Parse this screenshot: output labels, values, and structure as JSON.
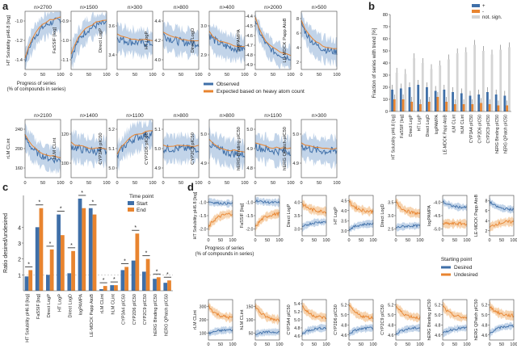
{
  "colors": {
    "blue": "#3f6fa8",
    "blue_light": "#a8c2e0",
    "orange": "#e8842f",
    "orange_light": "#f4c28f",
    "grey": "#d4d4d4",
    "axis": "#444444"
  },
  "panel_a": {
    "label": "a",
    "xlabel_lines": [
      "Progress of series",
      "(% of compounds in series)"
    ],
    "legend": [
      "Observed",
      "Expected based on heavy atom count"
    ],
    "plots": [
      {
        "n": "n>2700",
        "ylabel": "HT Solubility pH6.8 [log]",
        "yticks": [
          "-1.4",
          "-1.2",
          "-1.0"
        ],
        "start": 0.15,
        "end": 0.85,
        "noise": 0.12
      },
      {
        "n": "n>1500",
        "ylabel": "FaSSIF [log]",
        "yticks": [
          "-1.1",
          "-1.0",
          "-0.9"
        ],
        "start": 0.2,
        "end": 0.8,
        "noise": 0.12
      },
      {
        "n": "n>300",
        "ylabel": "Direct LogP",
        "yticks": [
          "3.4",
          "3.6"
        ],
        "start": 0.55,
        "end": 0.45,
        "noise": 0.14
      },
      {
        "n": "n>800",
        "ylabel": "HT LogP",
        "yticks": [
          "4.0",
          "4.2",
          "4.4"
        ],
        "start": 0.6,
        "end": 0.45,
        "noise": 0.14
      },
      {
        "n": "n>400",
        "ylabel": "Direct LogD",
        "yticks": [
          "2.9",
          "3.0"
        ],
        "start": 0.6,
        "end": 0.35,
        "noise": 0.14
      },
      {
        "n": "n>2000",
        "ylabel": "logPAMPA",
        "yticks": [
          "-4.9",
          "-4.8",
          "-4.7",
          "-4.6",
          "-4.5",
          "-4.4"
        ],
        "start": 0.85,
        "end": 0.2,
        "noise": 0.1
      },
      {
        "n": "n>500",
        "ylabel": "LE-MDCK Papp AtoB",
        "yticks": [
          "2",
          "4",
          "6",
          "8"
        ],
        "start": 0.8,
        "end": 0.3,
        "noise": 0.12
      },
      {
        "n": "n>2100",
        "ylabel": "rLM CLint",
        "yticks": [
          "160",
          "200",
          "240"
        ],
        "start": 0.7,
        "end": 0.3,
        "noise": 0.12
      },
      {
        "n": "n>1400",
        "ylabel": "hLM CLint",
        "yticks": [
          "100",
          "120"
        ],
        "start": 0.55,
        "end": 0.45,
        "noise": 0.14
      },
      {
        "n": "n>1100",
        "ylabel": "CYP3A4 pIC50",
        "yticks": [
          "5.0",
          "5.1",
          "5.2"
        ],
        "start": 0.35,
        "end": 0.75,
        "noise": 0.14
      },
      {
        "n": "n>800",
        "ylabel": "CYP2D6 pIC50",
        "yticks": [
          "4.9",
          "5.0",
          "5.1"
        ],
        "start": 0.5,
        "end": 0.5,
        "noise": 0.14
      },
      {
        "n": "n>800",
        "ylabel": "CYP2C9 pIC50",
        "yticks": [
          "4.9",
          "5.0"
        ],
        "start": 0.6,
        "end": 0.4,
        "noise": 0.14
      },
      {
        "n": "n>1100",
        "ylabel": "hERG Binding pIC50",
        "yticks": [
          "4.8",
          "4.9",
          "5.0"
        ],
        "start": 0.55,
        "end": 0.45,
        "noise": 0.14
      },
      {
        "n": "n>300",
        "ylabel": "hERG QPatch pIC50",
        "yticks": [
          "4.9",
          "5.0"
        ],
        "start": 0.55,
        "end": 0.45,
        "noise": 0.14
      }
    ],
    "xticks": [
      "0",
      "50",
      "100"
    ]
  },
  "chart_data": [
    {
      "type": "bar",
      "panel": "b",
      "ylabel": "Fraction of series with trend [%]",
      "ylim": [
        0,
        80
      ],
      "yticks": [
        "0",
        "10",
        "20",
        "30",
        "40",
        "50",
        "60",
        "70",
        "80"
      ],
      "legend": [
        "+",
        "-",
        "not. sign."
      ],
      "legend_placement": "top-right",
      "categories": [
        "HT Solubility pH6.8 [log]",
        "FaSSIF [log]",
        "Direct LogP",
        "HT LogP",
        "Direct LogD",
        "logPAMPA",
        "LE-MDCK Papp AtoB",
        "rLM CLint",
        "hLM CLint",
        "CYP3A4 pIC50",
        "CYP2D6 pIC50",
        "CYP2C9 pIC50",
        "hERG Binding pIC50",
        "hERG QPatch pIC50"
      ],
      "series": [
        {
          "name": "+",
          "values": [
            18,
            19,
            20,
            22,
            20,
            17,
            18,
            16,
            15,
            13,
            14,
            16,
            14,
            13
          ]
        },
        {
          "name": "-",
          "values": [
            10,
            10,
            8,
            6,
            8,
            12,
            8,
            6,
            6,
            6,
            7,
            6,
            5,
            5
          ]
        },
        {
          "name": "not. sign.",
          "values": [
            32,
            31,
            44,
            40,
            35,
            38,
            43,
            48,
            49,
            55,
            50,
            47,
            51,
            53
          ]
        }
      ]
    },
    {
      "type": "bar",
      "panel": "c",
      "ylabel": "Ratio desired/undesired",
      "yticks": [
        "1",
        "2",
        "3",
        "4"
      ],
      "legend_title": "Time point",
      "legend": [
        "Start",
        "End"
      ],
      "categories": [
        "HT Solubility pH6.8 [log]",
        "FaSSIF [log]",
        "Direct LogP",
        "HT LogP",
        "Direct LogD",
        "logPAMPA",
        "LE-MDCK Papp AtoB",
        "rLM CLint",
        "hLM CLint",
        "CYP3A4 pIC50",
        "CYP2D6 pIC50",
        "CYP2C9 pIC50",
        "hERG Binding pIC50",
        "hERG QPatch pIC50"
      ],
      "series": [
        {
          "name": "Start",
          "values": [
            0.9,
            4.0,
            1.0,
            4.8,
            1.1,
            5.8,
            5.2,
            0.1,
            0.35,
            1.3,
            1.9,
            1.2,
            0.75,
            0.5
          ]
        },
        {
          "name": "End",
          "values": [
            1.3,
            5.2,
            2.6,
            3.5,
            2.5,
            5.2,
            4.8,
            0.3,
            0.35,
            1.5,
            3.6,
            2.0,
            0.85,
            0.65
          ]
        }
      ],
      "significance_mark": "*"
    }
  ],
  "panel_b_label": "b",
  "panel_c_label": "c",
  "panel_d": {
    "label": "d",
    "xlabel_lines": [
      "Progress of series",
      "(% of compounds in series)"
    ],
    "legend_title": "Starting point",
    "legend": [
      "Desired",
      "Undesired"
    ],
    "xticks": [
      "0",
      "50",
      "100"
    ],
    "plots": [
      {
        "ylabel": "HT Solubility pH6.8 [log]",
        "yticks": [
          "-2.0",
          "-1.5",
          "-1.0"
        ],
        "blue": [
          0.85,
          0.8
        ],
        "orange": [
          0.2,
          0.55
        ]
      },
      {
        "ylabel": "FaSSIF [log]",
        "yticks": [
          "-2.0",
          "-1.5",
          "-1.0"
        ],
        "blue": [
          0.88,
          0.82
        ],
        "orange": [
          0.2,
          0.55
        ]
      },
      {
        "ylabel": "Direct LogP",
        "yticks": [
          "3.0",
          "3.5",
          "4.0"
        ],
        "blue": [
          0.2,
          0.35
        ],
        "orange": [
          0.8,
          0.6
        ]
      },
      {
        "ylabel": "HT LogP",
        "yticks": [
          "3.0",
          "3.5",
          "4.0",
          "4.5"
        ],
        "blue": [
          0.15,
          0.3
        ],
        "orange": [
          0.85,
          0.6
        ]
      },
      {
        "ylabel": "Direct LogD",
        "yticks": [
          "2.5",
          "3.0",
          "3.5"
        ],
        "blue": [
          0.2,
          0.25
        ],
        "orange": [
          0.85,
          0.55
        ]
      },
      {
        "ylabel": "logPAMPA",
        "yticks": [
          "-5.0",
          "-4.5",
          "-4.0"
        ],
        "blue": [
          0.85,
          0.7
        ],
        "orange": [
          0.3,
          0.3
        ]
      },
      {
        "ylabel": "LE-MDCK Papp AtoB",
        "yticks": [
          "2",
          "4",
          "6",
          "8"
        ],
        "blue": [
          0.85,
          0.65
        ],
        "orange": [
          0.2,
          0.35
        ]
      },
      {
        "ylabel": "rLM CLint",
        "yticks": [
          "100",
          "200",
          "300"
        ],
        "blue": [
          0.15,
          0.25
        ],
        "orange": [
          0.85,
          0.55
        ]
      },
      {
        "ylabel": "hLM CLint",
        "yticks": [
          "50",
          "100",
          "150"
        ],
        "blue": [
          0.15,
          0.2
        ],
        "orange": [
          0.85,
          0.5
        ]
      },
      {
        "ylabel": "CYP3A4 pIC50",
        "yticks": [
          "4.6",
          "4.8",
          "5.0",
          "5.2",
          "5.4"
        ],
        "blue": [
          0.15,
          0.3
        ],
        "orange": [
          0.85,
          0.55
        ]
      },
      {
        "ylabel": "CYP2D6 pIC50",
        "yticks": [
          "4.6",
          "4.8",
          "5.0",
          "5.2"
        ],
        "blue": [
          0.15,
          0.3
        ],
        "orange": [
          0.85,
          0.55
        ]
      },
      {
        "ylabel": "CYP2C9 pIC50",
        "yticks": [
          "4.6",
          "4.8",
          "5.0",
          "5.2"
        ],
        "blue": [
          0.15,
          0.3
        ],
        "orange": [
          0.85,
          0.55
        ]
      },
      {
        "ylabel": "hERG Binding pIC50",
        "yticks": [
          "4.6",
          "4.8",
          "5.0",
          "5.2"
        ],
        "blue": [
          0.15,
          0.3
        ],
        "orange": [
          0.85,
          0.55
        ]
      },
      {
        "ylabel": "hERG QPatch pIC50",
        "yticks": [
          "4.6",
          "4.8",
          "5.0",
          "5.2"
        ],
        "blue": [
          0.15,
          0.35
        ],
        "orange": [
          0.85,
          0.6
        ]
      }
    ]
  }
}
